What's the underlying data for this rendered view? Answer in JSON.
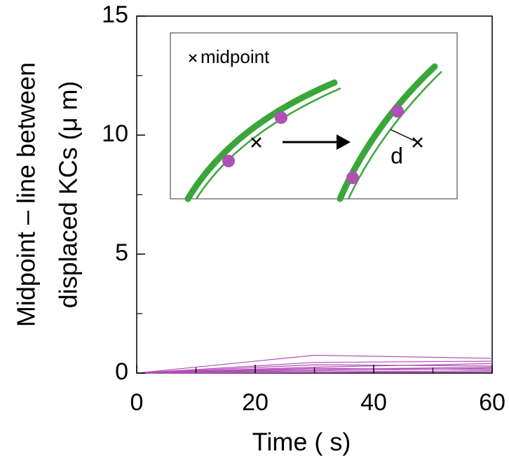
{
  "chart_data": {
    "type": "line",
    "x": [
      0,
      30,
      60
    ],
    "series": [
      {
        "color": "#b04fb5",
        "values": [
          0,
          0.75,
          0.62
        ]
      },
      {
        "color": "#b04fb5",
        "values": [
          0,
          0.45,
          0.5
        ]
      },
      {
        "color": "#b04fb5",
        "values": [
          0,
          0.35,
          0.3
        ]
      },
      {
        "color": "#b04fb5",
        "values": [
          0,
          0.25,
          0.4
        ]
      },
      {
        "color": "#b04fb5",
        "values": [
          0,
          0.2,
          0.15
        ]
      },
      {
        "color": "#b04fb5",
        "values": [
          0,
          0.15,
          0.25
        ]
      },
      {
        "color": "#b04fb5",
        "values": [
          0,
          0.1,
          0.2
        ]
      },
      {
        "color": "#b04fb5",
        "values": [
          0,
          0.05,
          0.1
        ]
      },
      {
        "color": "#b04fb5",
        "values": [
          0,
          0.02,
          0.05
        ]
      }
    ],
    "xlim": [
      0,
      60
    ],
    "xticks": [
      0,
      20,
      40,
      60
    ],
    "xminorticks": [
      10,
      30,
      50
    ],
    "ylim": [
      0,
      15
    ],
    "yticks": [
      0,
      5,
      10,
      15
    ],
    "yminorticks": [
      2.5,
      7.5,
      12.5
    ],
    "xlabel": "Time (  s)",
    "ylabel": [
      "Midpoint  – line between",
      "displaced KCs (μ m)"
    ],
    "inset": {
      "legend": "midpoint",
      "distance_label": "d"
    }
  }
}
